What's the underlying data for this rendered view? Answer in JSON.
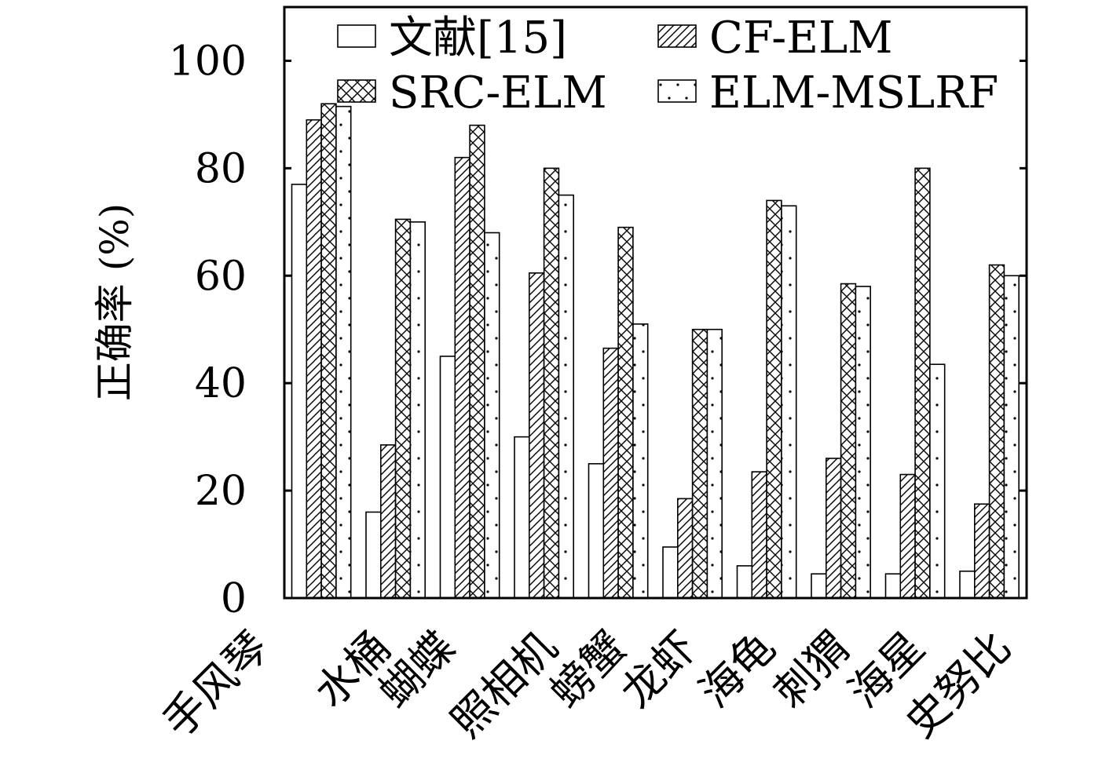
{
  "chart_data": {
    "type": "bar",
    "categories": [
      "手风琴",
      "水桶",
      "蝴蝶",
      "照相机",
      "螃蟹",
      "龙虾",
      "海龟",
      "刺猬",
      "海星",
      "史努比"
    ],
    "series": [
      {
        "name": "文献[15]",
        "pattern": "plain",
        "values": [
          77,
          16,
          45,
          30,
          25,
          9.5,
          6,
          4.5,
          4.5,
          5
        ]
      },
      {
        "name": "CF-ELM",
        "pattern": "hatch",
        "values": [
          89,
          28.5,
          82,
          60.5,
          46.5,
          18.5,
          23.5,
          26,
          23,
          17.5
        ]
      },
      {
        "name": "SRC-ELM",
        "pattern": "crosshatch",
        "values": [
          92,
          70.5,
          88,
          80,
          69,
          50,
          74,
          58.5,
          80,
          62
        ]
      },
      {
        "name": "ELM-MSLRF",
        "pattern": "dots",
        "values": [
          91.5,
          70,
          68,
          75,
          51,
          50,
          73,
          58,
          43.5,
          60
        ]
      }
    ],
    "ylabel": "正确率 (%)",
    "xlabel": "",
    "ylim": [
      0,
      110
    ],
    "yticks": [
      0,
      20,
      40,
      60,
      80,
      100
    ],
    "legend_position": "top",
    "colors": {
      "bar_fill": "#ffffff",
      "stroke": "#000000"
    }
  }
}
